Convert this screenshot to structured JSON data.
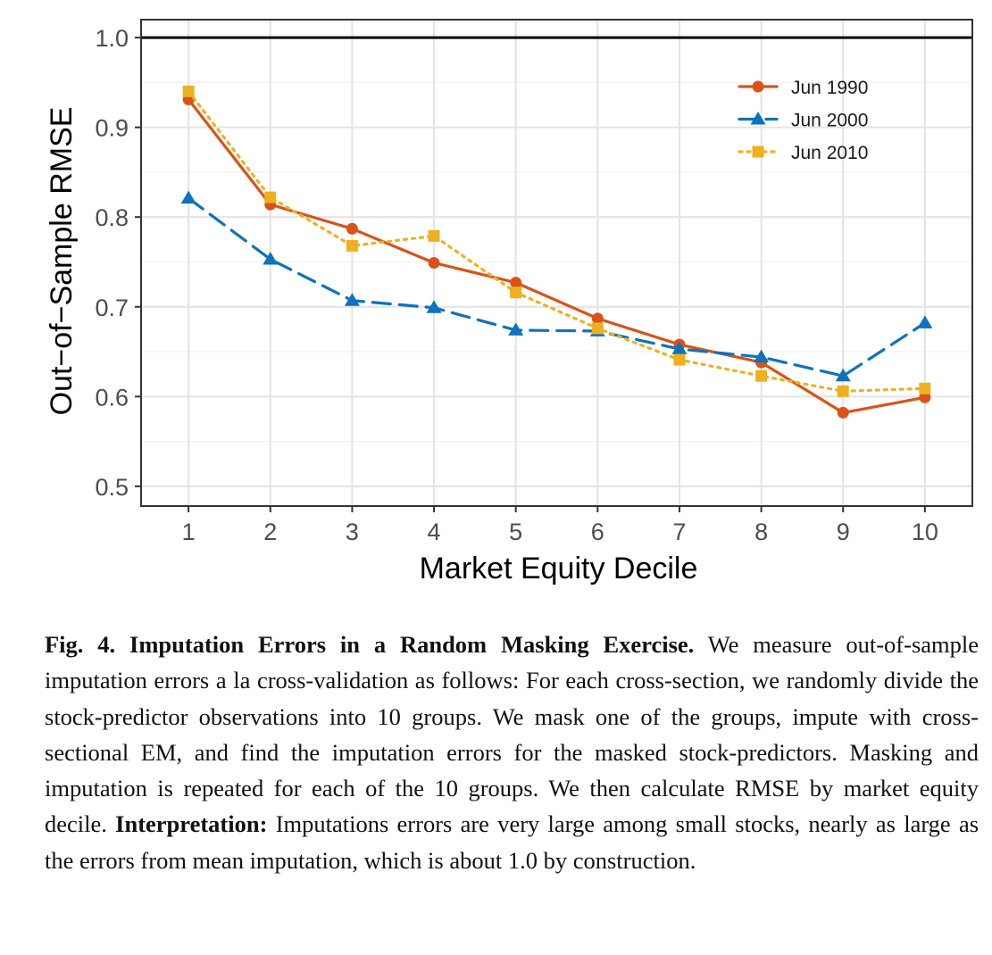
{
  "chart_data": {
    "type": "line",
    "title": "",
    "xlabel": "Market Equity Decile",
    "ylabel": "Out−of−Sample RMSE",
    "categories": [
      "1",
      "2",
      "3",
      "4",
      "5",
      "6",
      "7",
      "8",
      "9",
      "10"
    ],
    "x": [
      1,
      2,
      3,
      4,
      5,
      6,
      7,
      8,
      9,
      10
    ],
    "xlim": [
      0.42,
      10.58
    ],
    "ylim": [
      0.478,
      1.02
    ],
    "yticks": [
      0.5,
      0.6,
      0.7,
      0.8,
      0.9,
      1.0
    ],
    "ytick_labels": [
      "0.5",
      "0.6",
      "0.7",
      "0.8",
      "0.9",
      "1.0"
    ],
    "grid": true,
    "legend_position": "top-right",
    "reference_line": {
      "y": 1.0,
      "color": "#000000"
    },
    "series": [
      {
        "name": "Jun 1990",
        "color": "#d95319",
        "marker": "circle",
        "line_style": "solid",
        "values": [
          0.931,
          0.814,
          0.787,
          0.749,
          0.727,
          0.687,
          0.658,
          0.638,
          0.582,
          0.599
        ]
      },
      {
        "name": "Jun 2000",
        "color": "#0e72bd",
        "marker": "triangle",
        "line_style": "dashed",
        "values": [
          0.821,
          0.753,
          0.707,
          0.699,
          0.674,
          0.673,
          0.653,
          0.644,
          0.623,
          0.682
        ]
      },
      {
        "name": "Jun 2010",
        "color": "#edb120",
        "marker": "square",
        "line_style": "dotted",
        "values": [
          0.94,
          0.822,
          0.768,
          0.779,
          0.716,
          0.676,
          0.641,
          0.623,
          0.606,
          0.609
        ]
      }
    ]
  },
  "caption": {
    "label": "Fig. 4.",
    "title": "Imputation Errors in a Random Masking Exercise.",
    "body": "We measure out-of-sample imputation errors a la cross-validation as follows: For each cross-section, we randomly divide the stock-predictor observations into 10 groups. We mask one of the groups, impute with cross-sectional EM, and find the imputation errors for the masked stock-predictors. Masking and imputation is repeated for each of the 10 groups. We then calculate RMSE by market equity decile.",
    "interpretation_label": "Interpretation:",
    "interpretation": "Imputations errors are very large among small stocks, nearly as large as the errors from mean imputation, which is about 1.0 by construction."
  }
}
